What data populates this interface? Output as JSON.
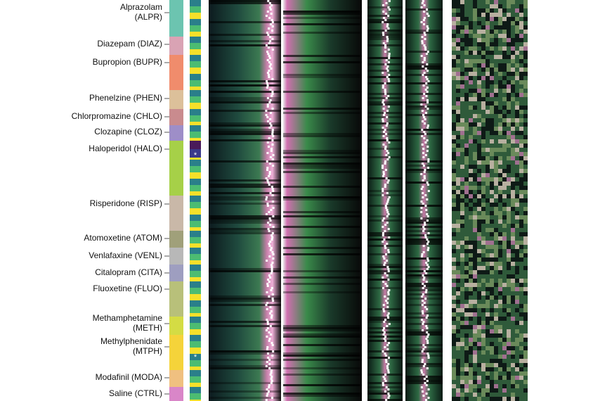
{
  "drugs": [
    {
      "label": [
        "Alprazolam",
        "(ALPR)"
      ],
      "color": "#6cc4b0"
    },
    {
      "label": [
        "Diazepam (DIAZ)"
      ],
      "color": "#d9a3b4"
    },
    {
      "label": [
        "Bupropion (BUPR)"
      ],
      "color": "#f08c6c"
    },
    {
      "label": [
        "Phenelzine (PHEN)"
      ],
      "color": "#dcc09a"
    },
    {
      "label": [
        "Chlorpromazine (CHLO)"
      ],
      "color": "#c98b8e"
    },
    {
      "label": [
        "Clozapine (CLOZ)"
      ],
      "color": "#9e8ec8"
    },
    {
      "label": [
        "Haloperidol (HALO)"
      ],
      "color": "#a6d048"
    },
    {
      "label": [
        "Risperidone (RISP)"
      ],
      "color": "#c9b8a8"
    },
    {
      "label": [
        "Atomoxetine (ATOM)"
      ],
      "color": "#a0a07a"
    },
    {
      "label": [
        "Venlafaxine (VENL)"
      ],
      "color": "#b8b8b8"
    },
    {
      "label": [
        "Citalopram (CITA)"
      ],
      "color": "#9e9ec0"
    },
    {
      "label": [
        "Fluoxetine (FLUO)"
      ],
      "color": "#b8c07a"
    },
    {
      "label": [
        "Methamphetamine",
        "(METH)"
      ],
      "color": "#d4dc44"
    },
    {
      "label": [
        "Methylphenidate",
        "(MTPH)"
      ],
      "color": "#f5d33a"
    },
    {
      "label": [
        "Modafinil (MODA)"
      ],
      "color": "#f0c080"
    },
    {
      "label": [
        "Saline (CTRL)"
      ],
      "color": "#d986c8"
    }
  ],
  "markers": [
    "*",
    "*"
  ]
}
